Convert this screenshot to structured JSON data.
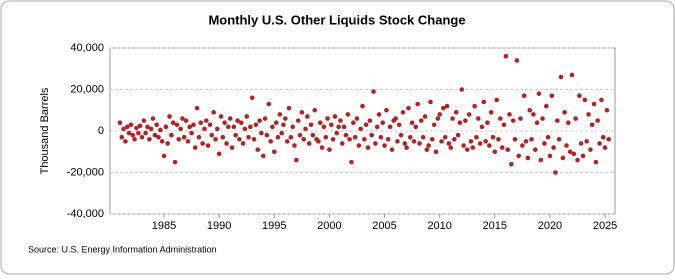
{
  "chart_data": {
    "type": "scatter",
    "title": "Monthly U.S. Other Liquids Stock Change",
    "y_label": "Thousand Barrels",
    "source": "Source: U.S. Energy Information Administration",
    "color": "#b22222",
    "grid": true,
    "xlim": [
      1980.1,
      2025.9
    ],
    "xticks": [
      1985,
      1990,
      1995,
      2000,
      2005,
      2010,
      2015,
      2020,
      2025
    ],
    "ylim": [
      -40000,
      40000
    ],
    "yticks": [
      {
        "value": -40000,
        "label": "-40,000"
      },
      {
        "value": -20000,
        "label": "-20,000"
      },
      0,
      {
        "value": 20000,
        "label": "20,000"
      },
      {
        "value": 40000,
        "label": "40,000"
      }
    ],
    "x": [
      1981,
      1981.17,
      1981.33,
      1981.5,
      1981.67,
      1981.83,
      1982,
      1982.17,
      1982.33,
      1982.5,
      1982.67,
      1982.83,
      1983,
      1983.17,
      1983.33,
      1983.5,
      1983.67,
      1983.83,
      1984,
      1984.17,
      1984.33,
      1984.5,
      1984.67,
      1984.83,
      1985,
      1985.17,
      1985.33,
      1985.5,
      1985.67,
      1985.83,
      1986,
      1986.17,
      1986.33,
      1986.5,
      1986.67,
      1986.83,
      1987,
      1987.17,
      1987.33,
      1987.5,
      1987.67,
      1987.83,
      1988,
      1988.17,
      1988.33,
      1988.5,
      1988.67,
      1988.83,
      1989,
      1989.17,
      1989.33,
      1989.5,
      1989.67,
      1989.83,
      1990,
      1990.17,
      1990.33,
      1990.5,
      1990.67,
      1990.83,
      1991,
      1991.17,
      1991.33,
      1991.5,
      1991.67,
      1991.83,
      1992,
      1992.17,
      1992.33,
      1992.5,
      1992.67,
      1992.83,
      1993,
      1993.17,
      1993.33,
      1993.5,
      1993.67,
      1993.83,
      1994,
      1994.17,
      1994.33,
      1994.5,
      1994.67,
      1994.83,
      1995,
      1995.17,
      1995.33,
      1995.5,
      1995.67,
      1995.83,
      1996,
      1996.17,
      1996.33,
      1996.5,
      1996.67,
      1996.83,
      1997,
      1997.17,
      1997.33,
      1997.5,
      1997.67,
      1997.83,
      1998,
      1998.17,
      1998.33,
      1998.5,
      1998.67,
      1998.83,
      1999,
      1999.17,
      1999.33,
      1999.5,
      1999.67,
      1999.83,
      2000,
      2000.17,
      2000.33,
      2000.5,
      2000.67,
      2000.83,
      2001,
      2001.17,
      2001.33,
      2001.5,
      2001.67,
      2001.83,
      2002,
      2002.17,
      2002.33,
      2002.5,
      2002.67,
      2002.83,
      2003,
      2003.17,
      2003.33,
      2003.5,
      2003.67,
      2003.83,
      2004,
      2004.17,
      2004.33,
      2004.5,
      2004.67,
      2004.83,
      2005,
      2005.17,
      2005.33,
      2005.5,
      2005.67,
      2005.83,
      2006,
      2006.17,
      2006.33,
      2006.5,
      2006.67,
      2006.83,
      2007,
      2007.17,
      2007.33,
      2007.5,
      2007.67,
      2007.83,
      2008,
      2008.17,
      2008.33,
      2008.5,
      2008.67,
      2008.83,
      2009,
      2009.17,
      2009.33,
      2009.5,
      2009.67,
      2009.83,
      2010,
      2010.17,
      2010.33,
      2010.5,
      2010.67,
      2010.83,
      2011,
      2011.17,
      2011.33,
      2011.5,
      2011.67,
      2011.83,
      2012,
      2012.17,
      2012.33,
      2012.5,
      2012.67,
      2012.83,
      2013,
      2013.17,
      2013.33,
      2013.5,
      2013.67,
      2013.83,
      2014,
      2014.17,
      2014.33,
      2014.5,
      2014.67,
      2014.83,
      2015,
      2015.17,
      2015.33,
      2015.5,
      2015.67,
      2015.83,
      2016,
      2016.17,
      2016.33,
      2016.5,
      2016.67,
      2016.83,
      2017,
      2017.17,
      2017.33,
      2017.5,
      2017.67,
      2017.83,
      2018,
      2018.17,
      2018.33,
      2018.5,
      2018.67,
      2018.83,
      2019,
      2019.17,
      2019.33,
      2019.5,
      2019.67,
      2019.83,
      2020,
      2020.17,
      2020.33,
      2020.5,
      2020.67,
      2020.83,
      2021,
      2021.17,
      2021.33,
      2021.5,
      2021.67,
      2021.83,
      2022,
      2022.17,
      2022.33,
      2022.5,
      2022.67,
      2022.83,
      2023,
      2023.17,
      2023.33,
      2023.5,
      2023.67,
      2023.83,
      2024,
      2024.17,
      2024.33,
      2024.5,
      2024.67,
      2024.83,
      2025,
      2025.17,
      2025.33
    ],
    "values": [
      4000,
      -3000,
      1000,
      -5000,
      2000,
      -1000,
      3000,
      -2000,
      -4000,
      1500,
      -1000,
      2500,
      -3000,
      5000,
      -1000,
      2000,
      -4000,
      1000,
      6000,
      -2000,
      3000,
      -3000,
      500,
      -5000,
      -12000,
      2000,
      -6000,
      7000,
      -2000,
      4000,
      -15000,
      3000,
      -4000,
      1000,
      6000,
      -3000,
      5000,
      -5000,
      2000,
      -1000,
      3000,
      -8000,
      11000,
      -3000,
      4000,
      -6000,
      1000,
      5000,
      -7000,
      3000,
      -2000,
      9000,
      -4000,
      1000,
      -11000,
      7000,
      -3000,
      4000,
      -6000,
      2000,
      6000,
      -8000,
      2000,
      -2000,
      5000,
      -4000,
      4000,
      -6000,
      1000,
      7000,
      -3000,
      2000,
      16000,
      -4000,
      3000,
      -9000,
      5000,
      -1000,
      -12000,
      6000,
      -2000,
      13000,
      -5000,
      2000,
      -10000,
      4000,
      -3000,
      8000,
      -1000,
      3000,
      6000,
      -5000,
      11000,
      -3000,
      2000,
      -7000,
      -14000,
      5000,
      -2000,
      9000,
      -4000,
      1000,
      7000,
      -6000,
      3000,
      -2000,
      10000,
      -4000,
      -5000,
      4000,
      -8000,
      2000,
      -3000,
      6000,
      -9000,
      3000,
      -4000,
      7000,
      -1000,
      2000,
      5000,
      -6000,
      2000,
      -2000,
      8000,
      -4000,
      -15000,
      4000,
      -3000,
      6000,
      -7000,
      1000,
      12000,
      -4000,
      3000,
      -8000,
      5000,
      -2000,
      19000,
      -6000,
      2000,
      8000,
      -3000,
      4000,
      -7000,
      10000,
      -4000,
      2000,
      -9000,
      5000,
      6000,
      -5000,
      3000,
      -2000,
      9000,
      -6000,
      -8000,
      11000,
      -3000,
      4000,
      -5000,
      2000,
      13000,
      -6000,
      5000,
      -3000,
      7000,
      -9000,
      -7000,
      14000,
      -4000,
      3000,
      -10000,
      6000,
      8000,
      -5000,
      11000,
      -3000,
      12000,
      -6000,
      -8000,
      6000,
      -4000,
      9000,
      -2000,
      4000,
      20000,
      -7000,
      5000,
      -9000,
      8000,
      -5000,
      -8000,
      12000,
      -3000,
      6000,
      -6000,
      2000,
      14000,
      -5000,
      4000,
      -7000,
      9000,
      -3000,
      -10000,
      15000,
      -4000,
      6000,
      -8000,
      3000,
      36000,
      -9000,
      8000,
      -16000,
      5000,
      -4000,
      34000,
      -12000,
      6000,
      -7000,
      17000,
      -5000,
      -13000,
      10000,
      -4000,
      8000,
      -9000,
      4000,
      18000,
      -14000,
      6000,
      -6000,
      12000,
      -3000,
      -12000,
      17000,
      -8000,
      -20000,
      5000,
      -4000,
      26000,
      -13000,
      9000,
      -7000,
      4000,
      -10000,
      27000,
      -11000,
      6000,
      -14000,
      17000,
      -6000,
      -12000,
      15000,
      -5000,
      8000,
      -9000,
      3000,
      13000,
      -15000,
      5000,
      -6000,
      15000,
      -3000,
      -8000,
      10000,
      -4000
    ]
  }
}
